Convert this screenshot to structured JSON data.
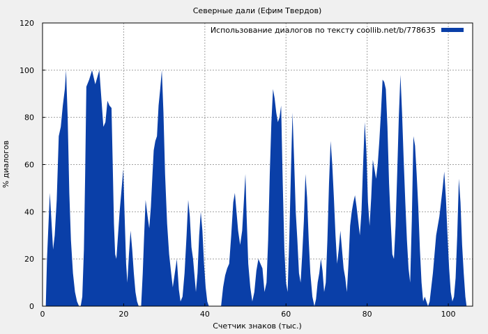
{
  "chart_data": {
    "type": "area",
    "title": "Северные дали (Ефим Твердов)",
    "xlabel": "Счетчик знаков (тыс.)",
    "ylabel": "% диалогов",
    "xlim": [
      0,
      106
    ],
    "ylim": [
      0,
      120
    ],
    "x_ticks": [
      0,
      20,
      40,
      60,
      80,
      100
    ],
    "y_ticks": [
      0,
      20,
      40,
      60,
      80,
      100,
      120
    ],
    "grid": true,
    "legend_position": "top-right",
    "series": [
      {
        "name": "Использование диалогов по тексту coollib.net/b/778635",
        "color": "#0a3fa8",
        "points": [
          [
            0,
            0
          ],
          [
            0.8,
            0
          ],
          [
            1.1,
            20
          ],
          [
            1.5,
            36
          ],
          [
            1.8,
            48
          ],
          [
            2.2,
            36
          ],
          [
            2.6,
            24
          ],
          [
            3,
            30
          ],
          [
            3.5,
            45
          ],
          [
            4,
            72
          ],
          [
            4.5,
            76
          ],
          [
            5,
            85
          ],
          [
            5.5,
            92
          ],
          [
            5.8,
            100
          ],
          [
            6.2,
            80
          ],
          [
            6.6,
            48
          ],
          [
            7,
            28
          ],
          [
            7.5,
            14
          ],
          [
            8,
            6
          ],
          [
            8.5,
            2
          ],
          [
            9,
            0
          ],
          [
            9.4,
            0
          ],
          [
            9.8,
            4
          ],
          [
            10.2,
            24
          ],
          [
            10.5,
            55
          ],
          [
            10.8,
            93
          ],
          [
            11.5,
            96
          ],
          [
            12.2,
            100
          ],
          [
            13,
            94
          ],
          [
            13.5,
            97
          ],
          [
            14,
            100
          ],
          [
            14.5,
            88
          ],
          [
            15,
            76
          ],
          [
            15.5,
            78
          ],
          [
            16,
            87
          ],
          [
            16.5,
            85
          ],
          [
            17,
            84
          ],
          [
            17.3,
            60
          ],
          [
            17.6,
            35
          ],
          [
            17.9,
            22
          ],
          [
            18.2,
            20
          ],
          [
            18.6,
            30
          ],
          [
            19,
            40
          ],
          [
            19.5,
            50
          ],
          [
            19.9,
            58
          ],
          [
            20.2,
            40
          ],
          [
            20.6,
            18
          ],
          [
            20.9,
            10
          ],
          [
            21.3,
            22
          ],
          [
            21.7,
            32
          ],
          [
            22.1,
            24
          ],
          [
            22.5,
            14
          ],
          [
            22.9,
            6
          ],
          [
            23.3,
            2
          ],
          [
            23.7,
            0
          ],
          [
            24.3,
            0
          ],
          [
            24.7,
            14
          ],
          [
            25,
            28
          ],
          [
            25.4,
            45
          ],
          [
            25.9,
            38
          ],
          [
            26.3,
            33
          ],
          [
            26.7,
            42
          ],
          [
            27.1,
            56
          ],
          [
            27.4,
            66
          ],
          [
            27.8,
            70
          ],
          [
            28.2,
            72
          ],
          [
            28.6,
            85
          ],
          [
            29,
            92
          ],
          [
            29.4,
            100
          ],
          [
            29.8,
            82
          ],
          [
            30.2,
            56
          ],
          [
            30.7,
            35
          ],
          [
            31.2,
            22
          ],
          [
            31.7,
            14
          ],
          [
            32.1,
            8
          ],
          [
            32.6,
            14
          ],
          [
            33.1,
            20
          ],
          [
            33.6,
            7
          ],
          [
            34,
            2
          ],
          [
            34.5,
            4
          ],
          [
            35,
            14
          ],
          [
            35.5,
            30
          ],
          [
            35.9,
            45
          ],
          [
            36.3,
            38
          ],
          [
            36.7,
            25
          ],
          [
            37.1,
            20
          ],
          [
            37.4,
            14
          ],
          [
            37.8,
            6
          ],
          [
            38.2,
            14
          ],
          [
            38.6,
            30
          ],
          [
            39,
            40
          ],
          [
            39.4,
            32
          ],
          [
            39.8,
            18
          ],
          [
            40.2,
            8
          ],
          [
            40.6,
            2
          ],
          [
            41,
            0
          ],
          [
            44,
            0
          ],
          [
            44.5,
            8
          ],
          [
            45,
            13
          ],
          [
            45.5,
            16
          ],
          [
            46,
            18
          ],
          [
            46.5,
            30
          ],
          [
            47,
            44
          ],
          [
            47.4,
            48
          ],
          [
            47.8,
            40
          ],
          [
            48.2,
            32
          ],
          [
            48.7,
            26
          ],
          [
            49.2,
            32
          ],
          [
            49.6,
            44
          ],
          [
            50,
            56
          ],
          [
            50.3,
            38
          ],
          [
            50.7,
            18
          ],
          [
            51.2,
            8
          ],
          [
            51.7,
            2
          ],
          [
            52.2,
            6
          ],
          [
            52.7,
            15
          ],
          [
            53.2,
            20
          ],
          [
            53.7,
            18
          ],
          [
            54.2,
            16
          ],
          [
            54.7,
            6
          ],
          [
            55.2,
            10
          ],
          [
            55.6,
            28
          ],
          [
            56,
            56
          ],
          [
            56.4,
            78
          ],
          [
            56.8,
            92
          ],
          [
            57.2,
            88
          ],
          [
            57.6,
            82
          ],
          [
            58,
            78
          ],
          [
            58.4,
            80
          ],
          [
            58.8,
            85
          ],
          [
            59.2,
            52
          ],
          [
            59.6,
            24
          ],
          [
            60,
            10
          ],
          [
            60.4,
            6
          ],
          [
            60.8,
            28
          ],
          [
            61.2,
            56
          ],
          [
            61.6,
            82
          ],
          [
            62,
            62
          ],
          [
            62.4,
            40
          ],
          [
            62.8,
            28
          ],
          [
            63.2,
            14
          ],
          [
            63.6,
            10
          ],
          [
            64,
            22
          ],
          [
            64.4,
            36
          ],
          [
            64.8,
            56
          ],
          [
            65.2,
            46
          ],
          [
            65.6,
            28
          ],
          [
            66,
            14
          ],
          [
            66.5,
            4
          ],
          [
            67,
            0
          ],
          [
            67.4,
            3
          ],
          [
            67.8,
            10
          ],
          [
            68.2,
            14
          ],
          [
            68.6,
            20
          ],
          [
            69,
            15
          ],
          [
            69.4,
            6
          ],
          [
            69.8,
            10
          ],
          [
            70.2,
            28
          ],
          [
            70.6,
            52
          ],
          [
            71,
            70
          ],
          [
            71.4,
            60
          ],
          [
            71.8,
            46
          ],
          [
            72.2,
            30
          ],
          [
            72.6,
            18
          ],
          [
            73,
            24
          ],
          [
            73.4,
            32
          ],
          [
            73.8,
            24
          ],
          [
            74.2,
            16
          ],
          [
            74.6,
            12
          ],
          [
            75,
            6
          ],
          [
            75.4,
            18
          ],
          [
            75.8,
            34
          ],
          [
            76.2,
            40
          ],
          [
            76.6,
            44
          ],
          [
            77,
            47
          ],
          [
            77.4,
            42
          ],
          [
            77.8,
            36
          ],
          [
            78.2,
            30
          ],
          [
            78.6,
            40
          ],
          [
            79,
            60
          ],
          [
            79.4,
            78
          ],
          [
            79.8,
            66
          ],
          [
            80.2,
            44
          ],
          [
            80.6,
            34
          ],
          [
            81,
            46
          ],
          [
            81.4,
            62
          ],
          [
            81.8,
            58
          ],
          [
            82.2,
            54
          ],
          [
            82.6,
            60
          ],
          [
            83,
            70
          ],
          [
            83.4,
            82
          ],
          [
            83.8,
            96
          ],
          [
            84.2,
            95
          ],
          [
            84.6,
            92
          ],
          [
            85,
            76
          ],
          [
            85.4,
            52
          ],
          [
            85.8,
            36
          ],
          [
            86.2,
            22
          ],
          [
            86.6,
            20
          ],
          [
            87,
            34
          ],
          [
            87.4,
            56
          ],
          [
            87.8,
            80
          ],
          [
            88.2,
            98
          ],
          [
            88.6,
            82
          ],
          [
            89,
            62
          ],
          [
            89.4,
            44
          ],
          [
            89.8,
            28
          ],
          [
            90.2,
            16
          ],
          [
            90.6,
            10
          ],
          [
            91,
            36
          ],
          [
            91.4,
            72
          ],
          [
            91.8,
            68
          ],
          [
            92.2,
            56
          ],
          [
            92.6,
            42
          ],
          [
            93,
            24
          ],
          [
            93.4,
            10
          ],
          [
            93.8,
            2
          ],
          [
            94.2,
            4
          ],
          [
            94.6,
            2
          ],
          [
            95,
            0
          ],
          [
            95.4,
            2
          ],
          [
            95.8,
            8
          ],
          [
            96.2,
            14
          ],
          [
            96.6,
            22
          ],
          [
            97,
            30
          ],
          [
            97.4,
            34
          ],
          [
            97.8,
            38
          ],
          [
            98.2,
            44
          ],
          [
            98.6,
            50
          ],
          [
            99,
            57
          ],
          [
            99.4,
            46
          ],
          [
            99.8,
            30
          ],
          [
            100.2,
            16
          ],
          [
            100.6,
            6
          ],
          [
            101,
            2
          ],
          [
            101.4,
            4
          ],
          [
            101.8,
            12
          ],
          [
            102.2,
            30
          ],
          [
            102.6,
            54
          ],
          [
            103,
            44
          ],
          [
            103.4,
            26
          ],
          [
            103.8,
            14
          ],
          [
            104.2,
            4
          ],
          [
            104.5,
            0
          ]
        ]
      }
    ]
  }
}
